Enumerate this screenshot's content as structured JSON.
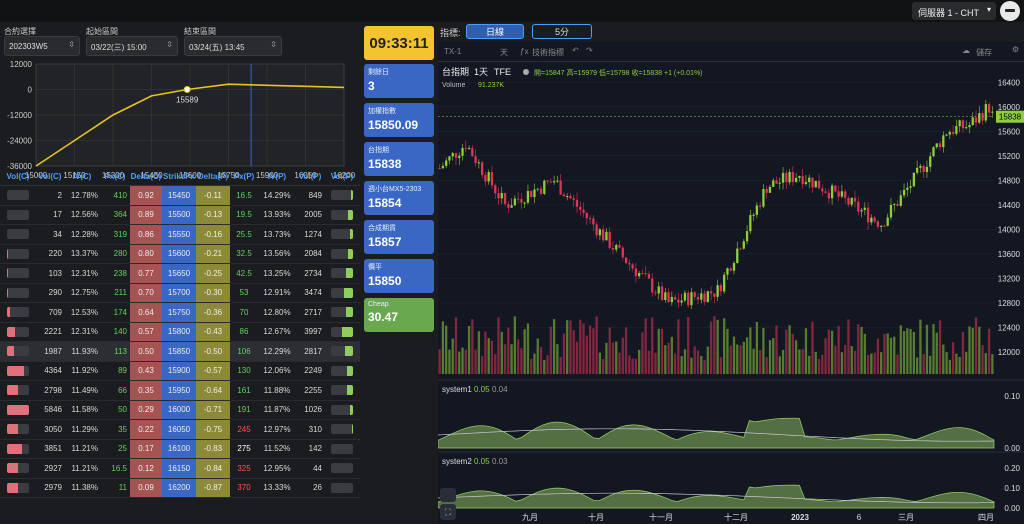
{
  "header": {
    "server_label": "伺服器 1 - CHT"
  },
  "controls": {
    "contract_label": "合約選擇",
    "contract_value": "202303W5",
    "start_label": "起始區間",
    "start_value": "03/22(三) 15:00",
    "end_label": "結束區間",
    "end_value": "03/24(五) 13:45"
  },
  "payoff_chart": {
    "type": "line",
    "x_ticks": [
      "15000",
      "15150",
      "15300",
      "15450",
      "15600",
      "15750",
      "15900",
      "16050",
      "16200"
    ],
    "y_ticks": [
      "12000",
      "0",
      "-12000",
      "-24000",
      "-36000"
    ],
    "marker_label": "15589",
    "x": [
      15000,
      15150,
      15300,
      15450,
      15589,
      15750,
      15900,
      16050,
      16200
    ],
    "y": [
      -36000,
      -24000,
      -12000,
      -3000,
      0,
      2500,
      2000,
      1500,
      1000
    ],
    "ylim": [
      -36000,
      12000
    ],
    "xlim": [
      15000,
      16200
    ]
  },
  "table": {
    "headers": [
      "Vol(C)",
      "Vol(C)",
      "IV(C)",
      "Px(C)",
      "Delta(C)",
      "StrikePx",
      "Delta(P)",
      "Px(P)",
      "IV(P)",
      "Vol(P)",
      "Vol(P)"
    ],
    "rows": [
      {
        "vol_c": "2",
        "iv_c": "12.78%",
        "px_c": "410",
        "delta_c": "0.92",
        "strike": "15450",
        "delta_p": "-0.11",
        "px_p": "16.5",
        "iv_p": "14.29%",
        "vol_p": "849",
        "vc_fill": 0.0,
        "vp_fill": 0.1
      },
      {
        "vol_c": "17",
        "iv_c": "12.56%",
        "px_c": "364",
        "delta_c": "0.89",
        "strike": "15500",
        "delta_p": "-0.13",
        "px_p": "19.5",
        "iv_p": "13.93%",
        "vol_p": "2005",
        "vc_fill": 0.0,
        "vp_fill": 0.25
      },
      {
        "vol_c": "34",
        "iv_c": "12.28%",
        "px_c": "319",
        "delta_c": "0.86",
        "strike": "15550",
        "delta_p": "-0.16",
        "px_p": "25.5",
        "iv_p": "13.73%",
        "vol_p": "1274",
        "vc_fill": 0.0,
        "vp_fill": 0.15
      },
      {
        "vol_c": "220",
        "iv_c": "13.37%",
        "px_c": "280",
        "delta_c": "0.80",
        "strike": "15600",
        "delta_p": "-0.21",
        "px_p": "32.5",
        "iv_p": "13.56%",
        "vol_p": "2084",
        "vc_fill": 0.03,
        "vp_fill": 0.25
      },
      {
        "vol_c": "103",
        "iv_c": "12.31%",
        "px_c": "238",
        "delta_c": "0.77",
        "strike": "15650",
        "delta_p": "-0.25",
        "px_p": "42.5",
        "iv_p": "13.25%",
        "vol_p": "2734",
        "vc_fill": 0.02,
        "vp_fill": 0.33
      },
      {
        "vol_c": "290",
        "iv_c": "12.75%",
        "px_c": "211",
        "delta_c": "0.70",
        "strike": "15700",
        "delta_p": "-0.30",
        "px_p": "53",
        "iv_p": "12.91%",
        "vol_p": "3474",
        "vc_fill": 0.05,
        "vp_fill": 0.42
      },
      {
        "vol_c": "709",
        "iv_c": "12.53%",
        "px_c": "174",
        "delta_c": "0.64",
        "strike": "15750",
        "delta_p": "-0.36",
        "px_p": "70",
        "iv_p": "12.80%",
        "vol_p": "2717",
        "vc_fill": 0.12,
        "vp_fill": 0.33
      },
      {
        "vol_c": "2221",
        "iv_c": "12.31%",
        "px_c": "140",
        "delta_c": "0.57",
        "strike": "15800",
        "delta_p": "-0.43",
        "px_p": "86",
        "iv_p": "12.67%",
        "vol_p": "3997",
        "vc_fill": 0.38,
        "vp_fill": 0.5
      },
      {
        "vol_c": "1987",
        "iv_c": "11.93%",
        "px_c": "113",
        "delta_c": "0.50",
        "strike": "15850",
        "delta_p": "-0.50",
        "px_p": "106",
        "iv_p": "12.29%",
        "vol_p": "2817",
        "vc_fill": 0.34,
        "vp_fill": 0.35
      },
      {
        "vol_c": "4364",
        "iv_c": "11.92%",
        "px_c": "89",
        "delta_c": "0.43",
        "strike": "15900",
        "delta_p": "-0.57",
        "px_p": "130",
        "iv_p": "12.06%",
        "vol_p": "2249",
        "vc_fill": 0.75,
        "vp_fill": 0.28
      },
      {
        "vol_c": "2798",
        "iv_c": "11.49%",
        "px_c": "66",
        "delta_c": "0.35",
        "strike": "15950",
        "delta_p": "-0.64",
        "px_p": "161",
        "iv_p": "11.88%",
        "vol_p": "2255",
        "vc_fill": 0.48,
        "vp_fill": 0.28
      },
      {
        "vol_c": "5846",
        "iv_c": "11.58%",
        "px_c": "50",
        "delta_c": "0.29",
        "strike": "16000",
        "delta_p": "-0.71",
        "px_p": "191",
        "iv_p": "11.87%",
        "vol_p": "1026",
        "vc_fill": 1.0,
        "vp_fill": 0.13
      },
      {
        "vol_c": "3050",
        "iv_c": "11.29%",
        "px_c": "35",
        "delta_c": "0.22",
        "strike": "16050",
        "delta_p": "-0.75",
        "px_p": "245",
        "iv_p": "12.97%",
        "vol_p": "310",
        "vc_fill": 0.52,
        "vp_fill": 0.04,
        "px_p_color": "red"
      },
      {
        "vol_c": "3851",
        "iv_c": "11.21%",
        "px_c": "25",
        "delta_c": "0.17",
        "strike": "16100",
        "delta_p": "-0.83",
        "px_p": "275",
        "iv_p": "11.52%",
        "vol_p": "142",
        "vc_fill": 0.66,
        "vp_fill": 0.02,
        "px_p_color": "white"
      },
      {
        "vol_c": "2927",
        "iv_c": "11.21%",
        "px_c": "16.5",
        "delta_c": "0.12",
        "strike": "16150",
        "delta_p": "-0.84",
        "px_p": "325",
        "iv_p": "12.95%",
        "vol_p": "44",
        "vc_fill": 0.5,
        "vp_fill": 0.01,
        "px_p_color": "red"
      },
      {
        "vol_c": "2979",
        "iv_c": "11.38%",
        "px_c": "11",
        "delta_c": "0.09",
        "strike": "16200",
        "delta_p": "-0.87",
        "px_p": "370",
        "iv_p": "13.33%",
        "vol_p": "26",
        "vc_fill": 0.51,
        "vp_fill": 0.0,
        "px_p_color": "red"
      }
    ]
  },
  "cards": {
    "clock": "09:33:11",
    "items": [
      {
        "label": "剩餘日",
        "value": "3"
      },
      {
        "label": "加權指數",
        "value": "15850.09"
      },
      {
        "label": "台指期",
        "value": "15838"
      },
      {
        "label": "週小台MX5-2303",
        "value": "15854"
      },
      {
        "label": "合成期貨",
        "value": "15857"
      },
      {
        "label": "價平",
        "value": "15850"
      },
      {
        "label": "Cheap",
        "value": "30.47"
      }
    ]
  },
  "index_tabs": {
    "label": "指標:",
    "tab1": "日線",
    "tab2": "5分"
  },
  "tv_chart": {
    "symbol_box": "TX-1",
    "interval": "天",
    "indicators_btn": "技術指標",
    "save_btn": "儲存",
    "title": "台指期",
    "period": "1天",
    "exchange": "TFE",
    "ohlc": "開=15847 高=15979 低=15798 收=15838 +1 (+0.01%)",
    "volume_label": "Volume",
    "volume_value": "91.237K",
    "last_price": "15838",
    "y_ticks": [
      "16400",
      "16000",
      "15600",
      "15200",
      "14800",
      "14400",
      "14000",
      "13600",
      "13200",
      "12800",
      "12400",
      "12000"
    ],
    "x_ticks": [
      "九月",
      "十月",
      "十一月",
      "十二月",
      "2023",
      "6",
      "三月",
      "四月"
    ],
    "system1_label": "system1",
    "system1_v1": "0.05",
    "system1_v2": "0.04",
    "system1_ticks": [
      "0.10",
      "0.00"
    ],
    "system2_label": "system2",
    "system2_v1": "0.05",
    "system2_v2": "0.03",
    "system2_ticks": [
      "0.20",
      "0.10",
      "0.00"
    ]
  },
  "colors": {
    "up": "#8ecf3a",
    "down": "#e0335a",
    "accent_blue": "#3a66c4",
    "clock_yellow": "#f4c430",
    "cheap_green": "#6aa84f"
  }
}
